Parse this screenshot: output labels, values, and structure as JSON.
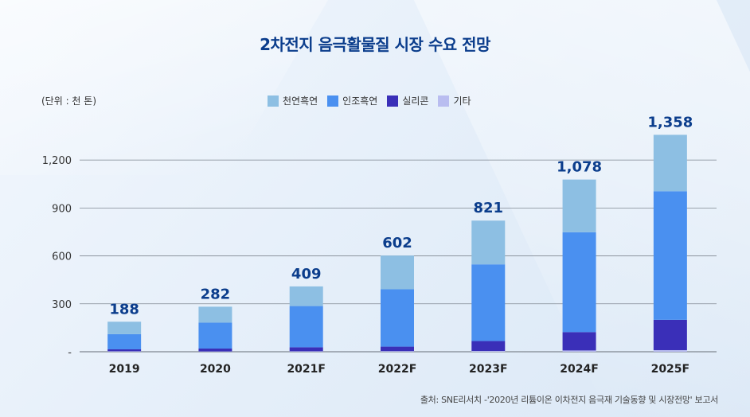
{
  "title": "2차전지 음극활물질 시장 수요 전망",
  "unit_label": "(단위 : 천 톤)",
  "source": "출처: SNE리서치 -'2020년 리튬이온 이차전지 음극재 기술동향 및 시장전망' 보고서",
  "colors": {
    "natural": "#8dbfe3",
    "artificial": "#4a90f0",
    "silicon": "#3a2fb8",
    "other": "#b9bdf0",
    "title": "#0b3d8c",
    "grid": "#7f8791"
  },
  "chart_data": {
    "type": "bar",
    "stacked": true,
    "title": "2차전지 음극활물질 시장 수요 전망",
    "ylabel": "(단위 : 천 톤)",
    "xlabel": "",
    "categories": [
      "2019",
      "2020",
      "2021F",
      "2022F",
      "2023F",
      "2024F",
      "2025F"
    ],
    "series": [
      {
        "name": "기타",
        "key": "other",
        "values": [
          3,
          2,
          3,
          4,
          5,
          8,
          10
        ]
      },
      {
        "name": "실리콘",
        "key": "silicon",
        "values": [
          12,
          18,
          25,
          28,
          62,
          115,
          190
        ]
      },
      {
        "name": "인조흑연",
        "key": "artificial",
        "values": [
          95,
          162,
          258,
          359,
          480,
          625,
          805
        ]
      },
      {
        "name": "천연흑연",
        "key": "natural",
        "values": [
          78,
          100,
          123,
          211,
          274,
          330,
          353
        ]
      }
    ],
    "totals": [
      "188",
      "282",
      "409",
      "602",
      "821",
      "1,078",
      "1,358"
    ],
    "total_values": [
      188,
      282,
      409,
      602,
      821,
      1078,
      1358
    ],
    "yticks": [
      0,
      300,
      600,
      900,
      1200
    ],
    "ytick_labels": [
      "-",
      "300",
      "600",
      "900",
      "1,200"
    ],
    "ylim": [
      0,
      1380
    ],
    "grid": true,
    "legend_position": "top-center",
    "legend": [
      "천연흑연",
      "인조흑연",
      "실리콘",
      "기타"
    ]
  }
}
